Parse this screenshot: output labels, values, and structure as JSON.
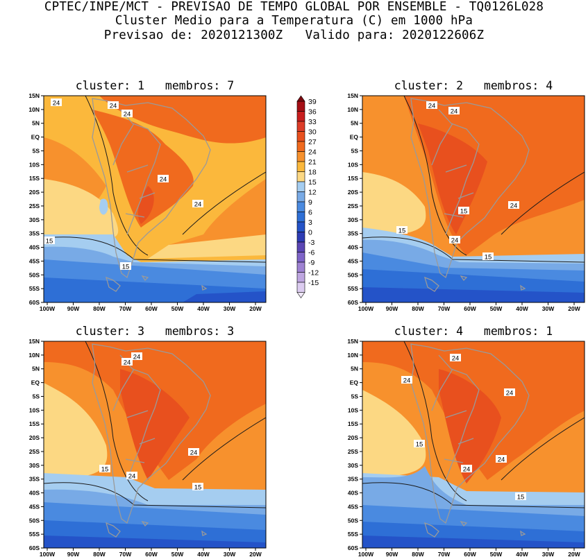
{
  "header": {
    "line1": "CPTEC/INPE/MCT - PREVISAO DE TEMPO GLOBAL POR ENSEMBLE - TQ0126L028",
    "line2": "Cluster Medio para a Temperatura (C) em 1000 hPa",
    "line3": "Previsao de: 2020121300Z   Valido para: 2020122606Z"
  },
  "lat_labels": [
    "15N",
    "10N",
    "5N",
    "EQ",
    "5S",
    "10S",
    "15S",
    "20S",
    "25S",
    "30S",
    "35S",
    "40S",
    "45S",
    "50S",
    "55S",
    "60S"
  ],
  "lon_labels": [
    "100W",
    "90W",
    "80W",
    "70W",
    "60W",
    "50W",
    "40W",
    "30W",
    "20W"
  ],
  "panels": [
    {
      "title": "cluster: 1   membros: 7",
      "contour_labels": [
        "24",
        "24",
        "24",
        "24",
        "24",
        "15",
        "15"
      ]
    },
    {
      "title": "cluster: 2   membros: 4",
      "contour_labels": [
        "24",
        "24",
        "24",
        "24",
        "15",
        "15",
        "15"
      ]
    },
    {
      "title": "cluster: 3   membros: 3",
      "contour_labels": [
        "24",
        "24",
        "24",
        "24",
        "15",
        "15"
      ]
    },
    {
      "title": "cluster: 4   membros: 1",
      "contour_labels": [
        "24",
        "24",
        "24",
        "24",
        "24",
        "15",
        "15"
      ]
    }
  ],
  "colorbar": {
    "labels": [
      "39",
      "36",
      "33",
      "30",
      "27",
      "24",
      "21",
      "18",
      "15",
      "12",
      "9",
      "6",
      "3",
      "0",
      "-3",
      "-6",
      "-9",
      "-12",
      "-15"
    ],
    "colors": [
      "#a50f15",
      "#c81e1e",
      "#dc3c28",
      "#e8501e",
      "#f06a1e",
      "#f7912d",
      "#fbb83c",
      "#fcd883",
      "#a5cdf0",
      "#78aae6",
      "#4a8ae0",
      "#2e6fd6",
      "#2453c8",
      "#2d3cb4",
      "#5a46b4",
      "#7e64c8",
      "#9e82d2",
      "#bea6e0",
      "#dcccf0"
    ]
  },
  "colors": {
    "coast": "#9a9a9a",
    "contour": "#1a1a1a"
  }
}
